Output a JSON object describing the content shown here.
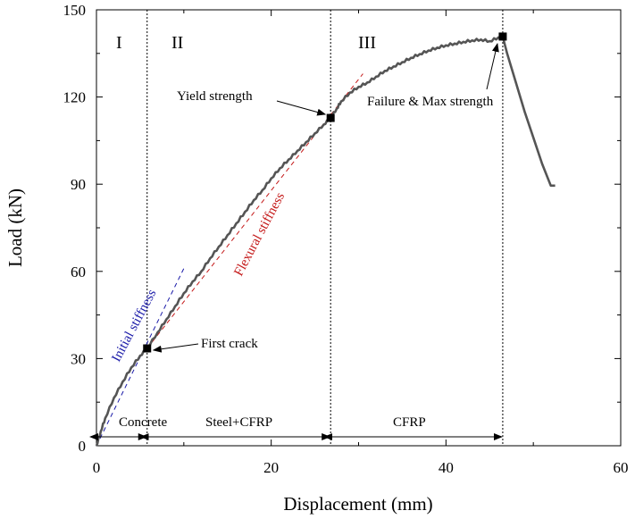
{
  "chart_data": {
    "type": "line",
    "xlabel": "Displacement (mm)",
    "ylabel": "Load (kN)",
    "xlim": [
      0,
      60
    ],
    "ylim": [
      0,
      150
    ],
    "x_ticks": [
      0,
      20,
      40,
      60
    ],
    "y_ticks": [
      0,
      30,
      60,
      90,
      120,
      150
    ],
    "series": [
      {
        "x": [
          0,
          0.5,
          1,
          2,
          3,
          4,
          5,
          5.8,
          7,
          8,
          9,
          10,
          11,
          12,
          13,
          14,
          15,
          16,
          17,
          18,
          19,
          20,
          21,
          22,
          23,
          24,
          25,
          26,
          26.8,
          27.5,
          28,
          29,
          30,
          31,
          32,
          33,
          34,
          35,
          36,
          37,
          38,
          39,
          40,
          41,
          42,
          43,
          44,
          45,
          46,
          46.5,
          47,
          48,
          49,
          50,
          51,
          52,
          52.5
        ],
        "y": [
          0,
          5,
          9.5,
          16.5,
          22,
          27,
          31,
          33.5,
          39,
          43.5,
          48,
          52.5,
          56.5,
          60,
          64.5,
          68.5,
          72.5,
          76.5,
          80.5,
          84.5,
          88,
          92,
          95.5,
          98.5,
          101.5,
          104.5,
          107.5,
          110.5,
          112.8,
          116,
          118.5,
          121.5,
          123.5,
          125,
          127,
          129,
          130.5,
          132,
          133.5,
          134.8,
          136,
          137,
          137.8,
          138.4,
          139,
          139.5,
          139.8,
          139.2,
          140.5,
          140.8,
          135,
          125,
          115,
          106,
          97,
          89.5,
          89.5
        ]
      }
    ],
    "reference_lines": [
      {
        "label": "Initial stiffness",
        "color": "#1a1aa8",
        "x": [
          0,
          10
        ],
        "y": [
          0,
          61
        ]
      },
      {
        "label": "Flexural stiffness",
        "color": "#c41818",
        "x": [
          5.8,
          30.5
        ],
        "y": [
          33.5,
          128
        ]
      }
    ],
    "key_points": [
      {
        "label": "First crack",
        "x": 5.8,
        "y": 33.5
      },
      {
        "label": "Yield strength",
        "x": 26.8,
        "y": 112.8
      },
      {
        "label": "Failure & Max strength",
        "x": 46.5,
        "y": 140.8
      }
    ],
    "phase_boundaries_x": [
      5.8,
      26.8,
      46.5
    ],
    "regions": [
      "I",
      "II",
      "III"
    ],
    "phases": [
      "Concrete",
      "Steel+CFRP",
      "CFRP"
    ],
    "grid": false
  }
}
